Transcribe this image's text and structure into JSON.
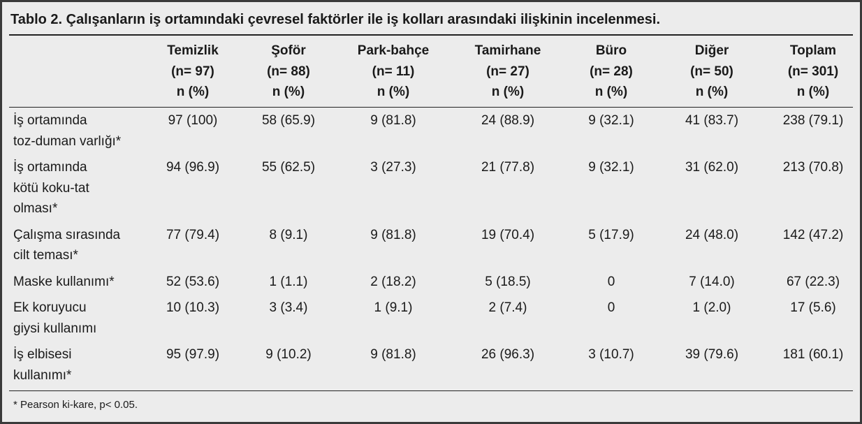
{
  "title": "Tablo 2. Çalışanların iş ortamındaki çevresel faktörler ile iş kolları arasındaki ilişkinin incelenmesi.",
  "table": {
    "columns": [
      [
        "Temizlik",
        "(n= 97)",
        "n (%)"
      ],
      [
        "Şoför",
        "(n= 88)",
        "n (%)"
      ],
      [
        "Park-bahçe",
        "(n= 11)",
        "n (%)"
      ],
      [
        "Tamirhane",
        "(n= 27)",
        "n (%)"
      ],
      [
        "Büro",
        "(n= 28)",
        "n (%)"
      ],
      [
        "Diğer",
        "(n= 50)",
        "n (%)"
      ],
      [
        "Toplam",
        "(n= 301)",
        "n (%)"
      ]
    ],
    "rows": [
      {
        "label": [
          "İş ortamında",
          "toz-duman varlığı*"
        ],
        "cells": [
          "97 (100)",
          "58 (65.9)",
          "9 (81.8)",
          "24 (88.9)",
          "9 (32.1)",
          "41 (83.7)",
          "238 (79.1)"
        ]
      },
      {
        "label": [
          "İş ortamında",
          "kötü koku-tat",
          "olması*"
        ],
        "cells": [
          "94 (96.9)",
          "55 (62.5)",
          "3 (27.3)",
          "21 (77.8)",
          "9 (32.1)",
          "31 (62.0)",
          "213 (70.8)"
        ]
      },
      {
        "label": [
          "Çalışma sırasında",
          "cilt teması*"
        ],
        "cells": [
          "77 (79.4)",
          "8 (9.1)",
          "9 (81.8)",
          "19 (70.4)",
          "5 (17.9)",
          "24 (48.0)",
          "142 (47.2)"
        ]
      },
      {
        "label": [
          "Maske kullanımı*"
        ],
        "cells": [
          "52 (53.6)",
          "1 (1.1)",
          "2 (18.2)",
          "5 (18.5)",
          "0",
          "7 (14.0)",
          "67 (22.3)"
        ]
      },
      {
        "label": [
          "Ek koruyucu",
          "giysi kullanımı"
        ],
        "cells": [
          "10 (10.3)",
          "3 (3.4)",
          "1 (9.1)",
          "2 (7.4)",
          "0",
          "1 (2.0)",
          "17 (5.6)"
        ]
      },
      {
        "label": [
          "İş elbisesi",
          "kullanımı*"
        ],
        "cells": [
          "95 (97.9)",
          "9 (10.2)",
          "9 (81.8)",
          "26 (96.3)",
          "3 (10.7)",
          "39 (79.6)",
          "181 (60.1)"
        ]
      }
    ]
  },
  "footnote": "* Pearson ki-kare, p< 0.05."
}
